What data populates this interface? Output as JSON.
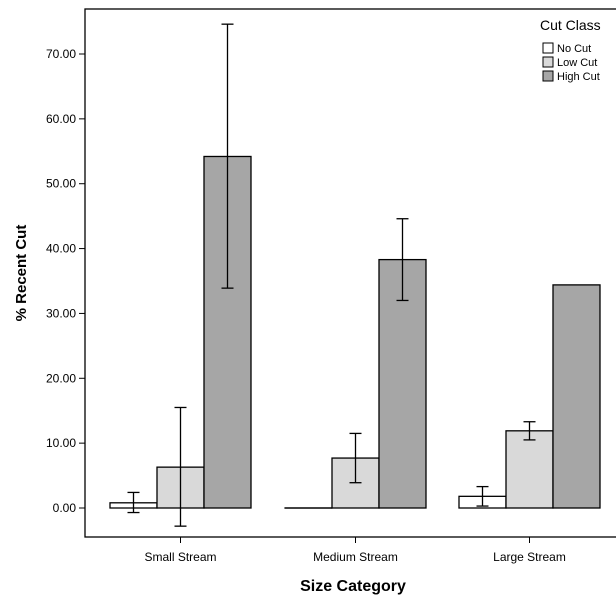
{
  "chart_data": {
    "type": "bar",
    "xlabel": "Size Category",
    "ylabel": "% Recent Cut",
    "ylim": [
      -4,
      80
    ],
    "yticks": [
      0,
      10,
      20,
      30,
      40,
      50,
      60,
      70
    ],
    "ytick_labels": [
      "0.00",
      "10.00",
      "20.00",
      "30.00",
      "40.00",
      "50.00",
      "60.00",
      "70.00"
    ],
    "categories": [
      "Small Stream",
      "Medium Stream",
      "Large Stream"
    ],
    "legend": {
      "title": "Cut Class",
      "position": "top-right"
    },
    "series": [
      {
        "name": "No Cut",
        "color": "#ffffff",
        "values": [
          0.8,
          0.0,
          1.8
        ],
        "error_low": [
          -0.7,
          null,
          0.3
        ],
        "error_high": [
          2.4,
          null,
          3.3
        ]
      },
      {
        "name": "Low  Cut",
        "color": "#d9d9d9",
        "values": [
          6.3,
          7.7,
          11.9
        ],
        "error_low": [
          -2.8,
          3.9,
          10.5
        ],
        "error_high": [
          15.5,
          11.5,
          13.3
        ]
      },
      {
        "name": "High Cut",
        "color": "#a6a6a6",
        "values": [
          54.2,
          38.3,
          34.4
        ],
        "error_low": [
          33.9,
          32.0,
          null
        ],
        "error_high": [
          74.6,
          44.6,
          null
        ]
      }
    ],
    "grid": false
  }
}
